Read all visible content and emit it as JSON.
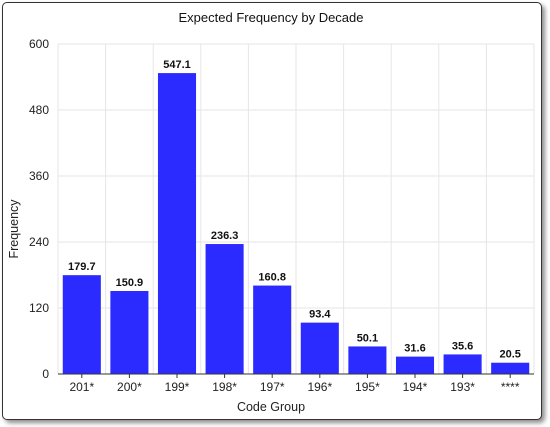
{
  "chart_data": {
    "type": "bar",
    "title": "Expected Frequency by Decade",
    "xlabel": "Code Group",
    "ylabel": "Frequency",
    "categories": [
      "201*",
      "200*",
      "199*",
      "198*",
      "197*",
      "196*",
      "195*",
      "194*",
      "193*",
      "****"
    ],
    "values": [
      179.7,
      150.9,
      547.1,
      236.3,
      160.8,
      93.4,
      50.1,
      31.6,
      35.6,
      20.5
    ],
    "data_labels": [
      "179.7",
      "150.9",
      "547.1",
      "236.3",
      "160.8",
      "93.4",
      "50.1",
      "31.6",
      "35.6",
      "20.5"
    ],
    "ylim": [
      0,
      600
    ],
    "yticks": [
      0,
      120,
      240,
      360,
      480,
      600
    ],
    "grid": true,
    "bar_color": "#2b2bff",
    "legend": "none"
  }
}
